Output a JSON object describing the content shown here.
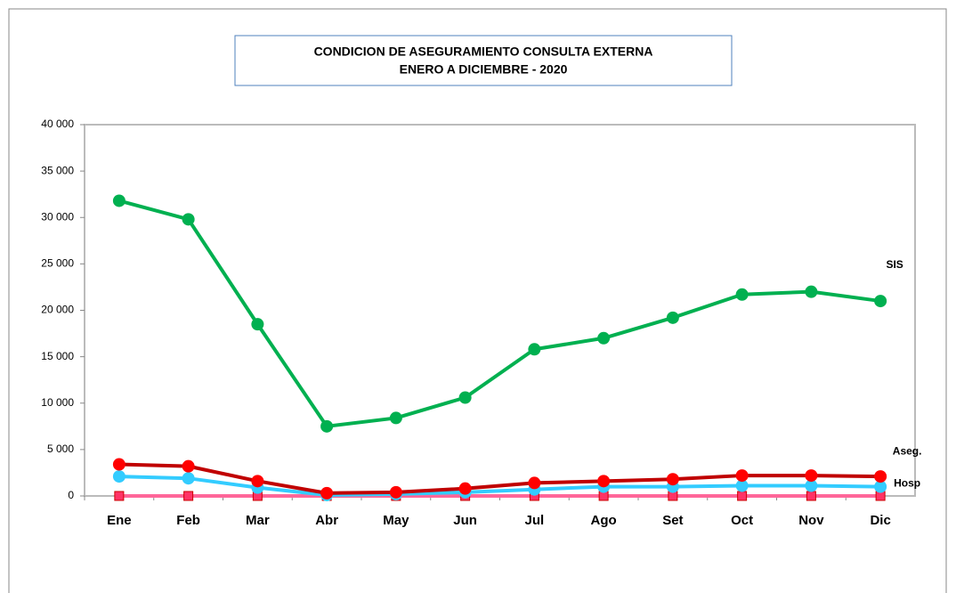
{
  "chart_data": {
    "type": "line",
    "title": "CONDICION DE ASEGURAMIENTO CONSULTA EXTERNA",
    "subtitle": "ENERO A DICIEMBRE - 2020",
    "categories": [
      "Ene",
      "Feb",
      "Mar",
      "Abr",
      "May",
      "Jun",
      "Jul",
      "Ago",
      "Set",
      "Oct",
      "Nov",
      "Dic"
    ],
    "series": [
      {
        "name": "SIS",
        "color": "#00b050",
        "marker_color": "#00b050",
        "values": [
          31800,
          29800,
          18500,
          7500,
          8400,
          10600,
          15800,
          17000,
          19200,
          21700,
          22000,
          21000
        ]
      },
      {
        "name": "Aseg.",
        "color": "#c00000",
        "marker_color": "#ff0000",
        "values": [
          3400,
          3200,
          1600,
          300,
          400,
          800,
          1400,
          1600,
          1800,
          2200,
          2200,
          2100
        ]
      },
      {
        "name": "Hosp",
        "color": "#33ccff",
        "marker_color": "#33ccff",
        "values": [
          2100,
          1900,
          900,
          100,
          200,
          400,
          700,
          1000,
          1000,
          1100,
          1100,
          1000
        ]
      },
      {
        "color": "#ff6699",
        "marker_color": "#ff3366",
        "values": [
          0,
          0,
          0,
          0,
          0,
          0,
          0,
          0,
          0,
          0,
          0,
          0
        ]
      }
    ],
    "ylim": [
      0,
      40000
    ],
    "yticks": [
      0,
      {
        "value": 5000,
        "label": "5 000"
      },
      {
        "value": 10000,
        "label": "10 000"
      },
      {
        "value": 15000,
        "label": "15 000"
      },
      {
        "value": 20000,
        "label": "20 000"
      },
      {
        "value": 25000,
        "label": "25 000"
      },
      {
        "value": 30000,
        "label": "30 000"
      },
      {
        "value": 35000,
        "label": "35 000"
      },
      {
        "value": 40000,
        "label": "40 000"
      }
    ],
    "grid": false
  }
}
